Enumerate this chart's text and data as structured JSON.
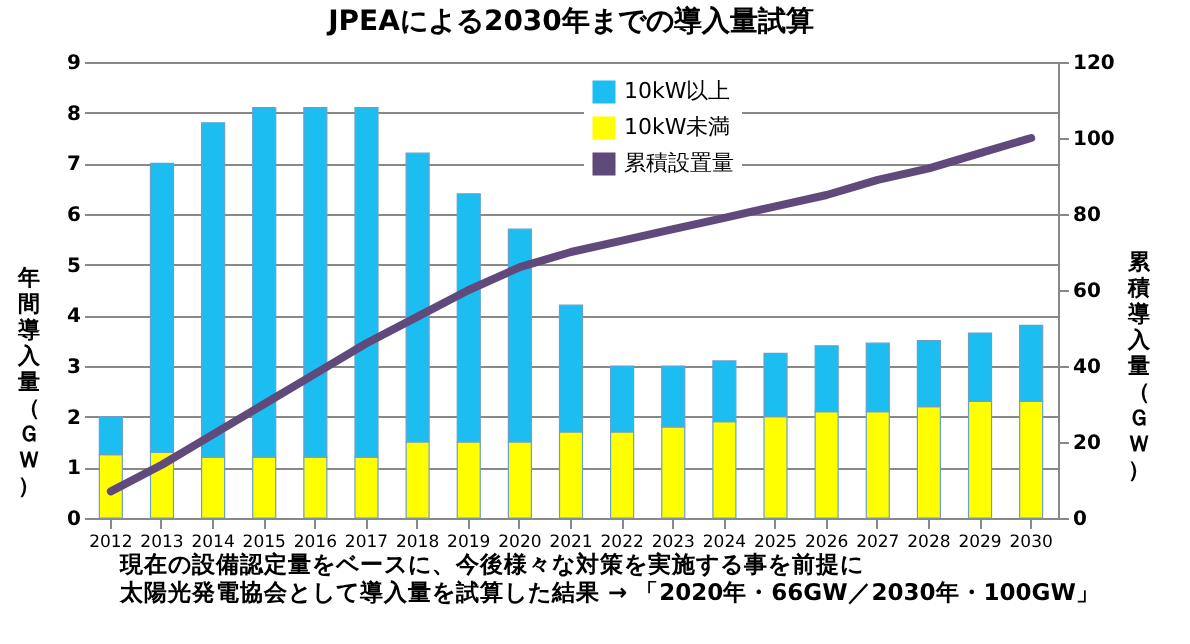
{
  "chart_data": {
    "type": "bar",
    "title": "JPEAによる2030年までの導入量試算",
    "ylabel": "年間導入量（ＧＷ）",
    "y2label": "累積導入量（ＧＷ）",
    "categories": [
      "2012",
      "2013",
      "2014",
      "2015",
      "2016",
      "2017",
      "2018",
      "2019",
      "2020",
      "2021",
      "2022",
      "2023",
      "2024",
      "2025",
      "2026",
      "2027",
      "2028",
      "2029",
      "2030"
    ],
    "stacked": true,
    "series": [
      {
        "name": "10kW未満",
        "color": "#ffff00",
        "values": [
          1.25,
          1.3,
          1.2,
          1.2,
          1.2,
          1.2,
          1.5,
          1.5,
          1.5,
          1.7,
          1.7,
          1.8,
          1.9,
          2.0,
          2.1,
          2.1,
          2.2,
          2.3,
          2.3
        ]
      },
      {
        "name": "10kW以上",
        "color": "#1cbef2",
        "values": [
          0.75,
          5.7,
          6.6,
          6.9,
          6.9,
          6.9,
          5.7,
          4.9,
          4.2,
          2.5,
          1.3,
          1.2,
          1.2,
          1.25,
          1.3,
          1.35,
          1.3,
          1.35,
          1.5
        ]
      },
      {
        "name": "累積設置量",
        "color": "#604a7b",
        "type": "line",
        "axis": "y2",
        "values": [
          7,
          14,
          22,
          30,
          38,
          46,
          53,
          60,
          66,
          70,
          73,
          76,
          79,
          82,
          85,
          89,
          92,
          96,
          100
        ]
      }
    ],
    "ylim": [
      0,
      9
    ],
    "yticks": [
      0,
      1,
      2,
      3,
      4,
      5,
      6,
      7,
      8,
      9
    ],
    "y2lim": [
      0,
      120
    ],
    "y2ticks": [
      0,
      20,
      40,
      60,
      80,
      100,
      120
    ],
    "grid": "y",
    "legend": "top",
    "annotations": [
      "現在の設備認定量をベースに、今後様々な対策を実施する事を前提に",
      "太陽光発電協会として導入量を試算した結果 → 「2020年・66GW／2030年・100GW」"
    ]
  }
}
